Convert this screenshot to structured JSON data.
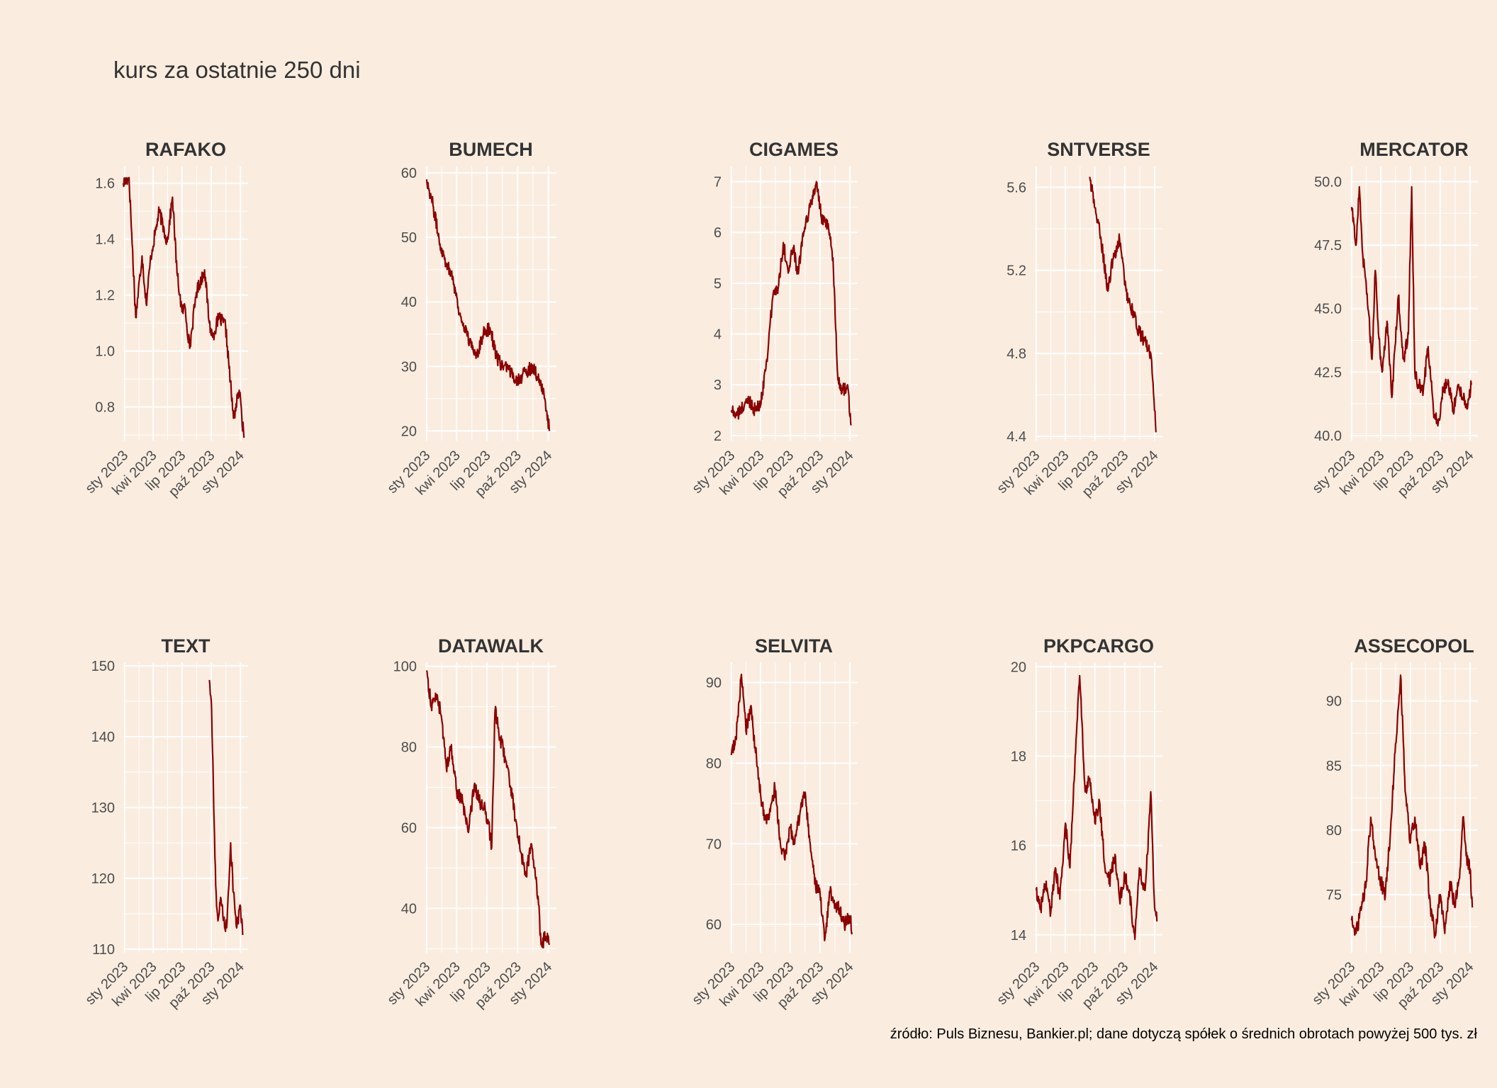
{
  "page": {
    "title": "kurs za ostatnie 250 dni",
    "source": "źródło: Puls Biznesu, Bankier.pl; dane dotyczą spółek o średnich obrotach powyżej 500 tys. zł"
  },
  "colors": {
    "background": "#FAEDE0",
    "grid": "#FFFFFF",
    "line": "#8B0000",
    "text": "#4D4D4D",
    "title": "#333333"
  },
  "x_axis": {
    "tick_labels": [
      "sty 2023",
      "kwi 2023",
      "lip 2023",
      "paź 2023",
      "sty 2024"
    ]
  },
  "chart_data": [
    {
      "type": "line",
      "title": "RAFAKO",
      "yticks": [
        "0.8",
        "1.0",
        "1.2",
        "1.4",
        "1.6"
      ],
      "ytick_values": [
        0.8,
        1.0,
        1.2,
        1.4,
        1.6
      ],
      "ylim": [
        0.68,
        1.66
      ],
      "xlim": [
        "2022-12-28",
        "2024-01-25"
      ],
      "x": [
        "2022-12-28",
        "2023-01-15",
        "2023-02-05",
        "2023-02-25",
        "2023-03-10",
        "2023-03-25",
        "2023-04-20",
        "2023-05-15",
        "2023-06-01",
        "2023-06-15",
        "2023-07-01",
        "2023-07-10",
        "2023-07-25",
        "2023-08-15",
        "2023-09-10",
        "2023-09-25",
        "2023-10-05",
        "2023-10-25",
        "2023-11-15",
        "2023-12-10",
        "2023-12-28",
        "2024-01-05",
        "2024-01-12"
      ],
      "y": [
        1.6,
        1.62,
        1.12,
        1.34,
        1.17,
        1.34,
        1.5,
        1.39,
        1.55,
        1.28,
        1.14,
        1.16,
        1.01,
        1.21,
        1.29,
        1.1,
        1.05,
        1.12,
        1.09,
        0.76,
        0.86,
        0.77,
        0.69
      ]
    },
    {
      "type": "line",
      "title": "BUMECH",
      "yticks": [
        "20",
        "30",
        "40",
        "50",
        "60"
      ],
      "ytick_values": [
        20,
        30,
        40,
        50,
        60
      ],
      "ylim": [
        18.5,
        61
      ],
      "xlim": [
        "2022-12-28",
        "2024-01-25"
      ],
      "x": [
        "2023-01-01",
        "2023-01-20",
        "2023-02-10",
        "2023-03-01",
        "2023-03-20",
        "2023-04-10",
        "2023-04-25",
        "2023-05-15",
        "2023-06-01",
        "2023-06-20",
        "2023-07-10",
        "2023-08-01",
        "2023-08-20",
        "2023-09-10",
        "2023-10-01",
        "2023-10-25",
        "2023-11-15",
        "2023-12-05",
        "2023-12-20",
        "2024-01-05"
      ],
      "y": [
        59,
        55,
        49,
        46,
        44,
        38,
        36,
        33,
        32,
        35,
        36,
        31,
        30,
        29,
        28,
        29,
        30,
        28,
        25,
        20
      ]
    },
    {
      "type": "line",
      "title": "CIGAMES",
      "yticks": [
        "2",
        "3",
        "4",
        "5",
        "6",
        "7"
      ],
      "ytick_values": [
        2,
        3,
        4,
        5,
        6,
        7
      ],
      "ylim": [
        1.9,
        7.3
      ],
      "xlim": [
        "2022-12-28",
        "2024-01-25"
      ],
      "x": [
        "2023-01-01",
        "2023-01-20",
        "2023-02-10",
        "2023-02-25",
        "2023-03-15",
        "2023-04-01",
        "2023-04-20",
        "2023-05-10",
        "2023-05-25",
        "2023-06-10",
        "2023-06-25",
        "2023-07-10",
        "2023-07-25",
        "2023-08-15",
        "2023-09-01",
        "2023-09-20",
        "2023-10-05",
        "2023-10-25",
        "2023-11-10",
        "2023-11-25",
        "2023-12-10",
        "2023-12-25",
        "2024-01-05"
      ],
      "y": [
        2.5,
        2.4,
        2.6,
        2.7,
        2.5,
        2.6,
        3.5,
        4.8,
        4.9,
        5.8,
        5.2,
        5.7,
        5.2,
        6.1,
        6.5,
        7.0,
        6.3,
        6.1,
        5.5,
        3.1,
        2.9,
        3.0,
        2.2
      ]
    },
    {
      "type": "line",
      "title": "SNTVERSE",
      "yticks": [
        "4.4",
        "4.8",
        "5.2",
        "5.6"
      ],
      "ytick_values": [
        4.4,
        4.8,
        5.2,
        5.6
      ],
      "ylim": [
        4.38,
        5.7
      ],
      "xlim": [
        "2022-12-28",
        "2024-01-25"
      ],
      "x": [
        "2023-06-15",
        "2023-07-01",
        "2023-07-20",
        "2023-08-10",
        "2023-08-25",
        "2023-09-15",
        "2023-10-05",
        "2023-10-25",
        "2023-11-15",
        "2023-12-05",
        "2023-12-20",
        "2024-01-05"
      ],
      "y": [
        5.65,
        5.5,
        5.35,
        5.1,
        5.25,
        5.35,
        5.1,
        5.0,
        4.9,
        4.85,
        4.8,
        4.42
      ]
    },
    {
      "type": "line",
      "title": "MERCATOR",
      "yticks": [
        "40.0",
        "42.5",
        "45.0",
        "47.5",
        "50.0"
      ],
      "ytick_values": [
        40.0,
        42.5,
        45.0,
        47.5,
        50.0
      ],
      "ylim": [
        39.8,
        50.6
      ],
      "xlim": [
        "2022-12-28",
        "2024-01-25"
      ],
      "x": [
        "2023-01-01",
        "2023-01-15",
        "2023-01-25",
        "2023-02-05",
        "2023-02-15",
        "2023-03-05",
        "2023-03-15",
        "2023-03-25",
        "2023-04-05",
        "2023-04-20",
        "2023-05-05",
        "2023-05-25",
        "2023-06-10",
        "2023-06-25",
        "2023-07-05",
        "2023-07-15",
        "2023-07-25",
        "2023-08-10",
        "2023-08-25",
        "2023-09-10",
        "2023-09-25",
        "2023-10-10",
        "2023-10-25",
        "2023-11-10",
        "2023-11-25",
        "2023-12-10",
        "2023-12-25",
        "2024-01-05"
      ],
      "y": [
        49.0,
        47.5,
        49.8,
        47.0,
        46.0,
        43.0,
        46.5,
        44.0,
        42.5,
        44.5,
        41.5,
        45.5,
        43.0,
        44.0,
        49.8,
        42.5,
        42.0,
        41.8,
        43.5,
        41.0,
        40.5,
        41.8,
        42.2,
        41.0,
        42.0,
        41.5,
        41.2,
        42.0
      ]
    },
    {
      "type": "line",
      "title": "TEXT",
      "yticks": [
        "110",
        "120",
        "130",
        "140",
        "150"
      ],
      "ytick_values": [
        110,
        120,
        130,
        140,
        150
      ],
      "ylim": [
        109.5,
        150.5
      ],
      "xlim": [
        "2022-12-28",
        "2024-01-25"
      ],
      "x": [
        "2023-09-25",
        "2023-10-01",
        "2023-10-05",
        "2023-10-10",
        "2023-10-15",
        "2023-10-22",
        "2023-11-01",
        "2023-11-12",
        "2023-11-20",
        "2023-12-01",
        "2023-12-10",
        "2023-12-20",
        "2024-01-01",
        "2024-01-08"
      ],
      "y": [
        148,
        145,
        138,
        128,
        119,
        114,
        117,
        113,
        114,
        125,
        118,
        113,
        116,
        112
      ]
    },
    {
      "type": "line",
      "title": "DATAWALK",
      "yticks": [
        "40",
        "60",
        "80",
        "100"
      ],
      "ytick_values": [
        40,
        60,
        80,
        100
      ],
      "ylim": [
        29,
        101
      ],
      "xlim": [
        "2022-12-28",
        "2024-01-25"
      ],
      "x": [
        "2023-01-01",
        "2023-01-15",
        "2023-02-01",
        "2023-02-15",
        "2023-03-01",
        "2023-03-15",
        "2023-04-01",
        "2023-04-20",
        "2023-05-05",
        "2023-05-25",
        "2023-06-10",
        "2023-06-25",
        "2023-07-05",
        "2023-07-15",
        "2023-07-25",
        "2023-08-10",
        "2023-08-25",
        "2023-09-10",
        "2023-09-25",
        "2023-10-10",
        "2023-10-25",
        "2023-11-10",
        "2023-11-20",
        "2023-12-01",
        "2023-12-10",
        "2023-12-25",
        "2024-01-05"
      ],
      "y": [
        99,
        90,
        93,
        87,
        75,
        80,
        69,
        66,
        59,
        71,
        66,
        65,
        61,
        55,
        89,
        82,
        77,
        70,
        62,
        54,
        48,
        56,
        50,
        43,
        31,
        33,
        31
      ]
    },
    {
      "type": "line",
      "title": "SELVITA",
      "yticks": [
        "60",
        "70",
        "80",
        "90"
      ],
      "ytick_values": [
        60,
        70,
        80,
        90
      ],
      "ylim": [
        56.5,
        92.5
      ],
      "xlim": [
        "2022-12-28",
        "2024-01-25"
      ],
      "x": [
        "2023-01-01",
        "2023-01-15",
        "2023-02-01",
        "2023-02-15",
        "2023-03-01",
        "2023-03-15",
        "2023-04-01",
        "2023-04-15",
        "2023-05-01",
        "2023-05-15",
        "2023-06-01",
        "2023-06-15",
        "2023-07-01",
        "2023-07-15",
        "2023-08-01",
        "2023-08-15",
        "2023-09-01",
        "2023-09-15",
        "2023-10-01",
        "2023-10-15",
        "2023-11-01",
        "2023-11-15",
        "2023-12-01",
        "2023-12-15",
        "2024-01-01",
        "2024-01-08"
      ],
      "y": [
        81,
        83,
        91,
        84,
        87,
        82,
        76,
        73,
        74,
        77,
        70,
        68,
        72,
        70,
        74,
        76,
        70,
        65,
        64,
        58,
        64,
        62,
        62,
        60,
        61,
        59
      ]
    },
    {
      "type": "line",
      "title": "PKPCARGO",
      "yticks": [
        "14",
        "16",
        "18",
        "20"
      ],
      "ytick_values": [
        14,
        16,
        18,
        20
      ],
      "ylim": [
        13.6,
        20.1
      ],
      "xlim": [
        "2022-12-28",
        "2024-01-25"
      ],
      "x": [
        "2023-01-01",
        "2023-01-15",
        "2023-02-01",
        "2023-02-15",
        "2023-03-01",
        "2023-03-15",
        "2023-04-01",
        "2023-04-15",
        "2023-05-01",
        "2023-05-15",
        "2023-06-01",
        "2023-06-15",
        "2023-07-01",
        "2023-07-15",
        "2023-08-01",
        "2023-08-15",
        "2023-09-01",
        "2023-09-15",
        "2023-10-01",
        "2023-10-15",
        "2023-11-01",
        "2023-11-15",
        "2023-12-01",
        "2023-12-10",
        "2023-12-20",
        "2024-01-01",
        "2024-01-08"
      ],
      "y": [
        15.0,
        14.6,
        15.2,
        14.5,
        15.5,
        14.8,
        16.5,
        15.5,
        18.0,
        19.8,
        17.2,
        17.5,
        16.5,
        17.0,
        15.5,
        15.2,
        15.8,
        14.8,
        15.3,
        15.0,
        13.9,
        15.5,
        15.0,
        15.8,
        17.2,
        14.6,
        14.3
      ]
    },
    {
      "type": "line",
      "title": "ASSECOPOL",
      "yticks": [
        "75",
        "80",
        "85",
        "90"
      ],
      "ytick_values": [
        75,
        80,
        85,
        90
      ],
      "ylim": [
        70.5,
        93
      ],
      "xlim": [
        "2022-12-28",
        "2024-01-25"
      ],
      "x": [
        "2023-01-01",
        "2023-01-15",
        "2023-02-01",
        "2023-02-15",
        "2023-03-01",
        "2023-03-15",
        "2023-04-01",
        "2023-04-15",
        "2023-05-01",
        "2023-05-15",
        "2023-06-01",
        "2023-06-15",
        "2023-07-01",
        "2023-07-15",
        "2023-08-01",
        "2023-08-15",
        "2023-09-01",
        "2023-09-15",
        "2023-10-01",
        "2023-10-15",
        "2023-11-01",
        "2023-11-15",
        "2023-12-01",
        "2023-12-10",
        "2023-12-20",
        "2024-01-01",
        "2024-01-08"
      ],
      "y": [
        73,
        72,
        74,
        76,
        81,
        78,
        76,
        75,
        80,
        86,
        92,
        83,
        79,
        81,
        77,
        79,
        74,
        72,
        75,
        72,
        76,
        74,
        77,
        81,
        78,
        77,
        74
      ]
    }
  ]
}
